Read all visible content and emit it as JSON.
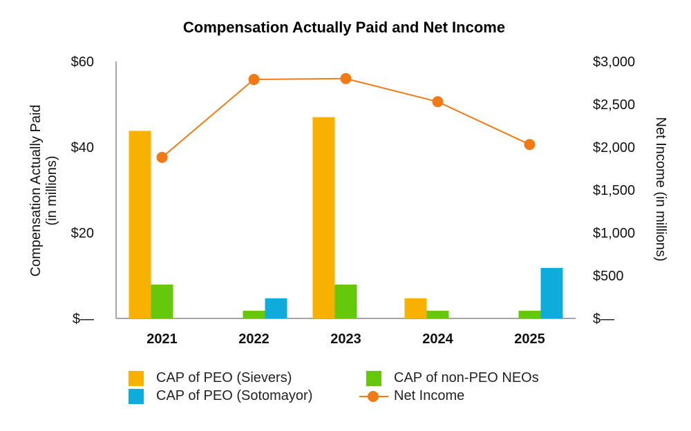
{
  "chart_data": {
    "type": "bar",
    "title": "Compensation Actually Paid and Net Income",
    "categories": [
      "2021",
      "2022",
      "2023",
      "2024",
      "2025"
    ],
    "ylabel_left": [
      "Compensation Actually Paid",
      "(in millions)"
    ],
    "ylabel_right": "Net Income (in millions)",
    "ylim_left": [
      0,
      60
    ],
    "ylim_right": [
      0,
      3000
    ],
    "left_ticks": [
      {
        "value": 0,
        "label": "$—"
      },
      {
        "value": 20,
        "label": "$20"
      },
      {
        "value": 40,
        "label": "$40"
      },
      {
        "value": 60,
        "label": "$60"
      }
    ],
    "right_ticks": [
      {
        "value": 0,
        "label": "$—"
      },
      {
        "value": 500,
        "label": "$500"
      },
      {
        "value": 1000,
        "label": "$1,000"
      },
      {
        "value": 1500,
        "label": "$1,500"
      },
      {
        "value": 2000,
        "label": "$2,000"
      },
      {
        "value": 2500,
        "label": "$2,500"
      },
      {
        "value": 3000,
        "label": "$3,000"
      }
    ],
    "series": [
      {
        "name": "CAP of PEO (Sievers)",
        "type": "bar",
        "axis": "left",
        "color": "#F9B100",
        "values": [
          43.8,
          null,
          47.0,
          4.7,
          null
        ]
      },
      {
        "name": "CAP of non-PEO NEOs",
        "type": "bar",
        "axis": "left",
        "color": "#66C80A",
        "values": [
          7.9,
          1.8,
          7.9,
          1.8,
          1.8
        ]
      },
      {
        "name": "CAP of PEO (Sotomayor)",
        "type": "bar",
        "axis": "left",
        "color": "#0EACDB",
        "values": [
          null,
          4.7,
          null,
          null,
          11.8
        ]
      },
      {
        "name": "Net Income",
        "type": "line",
        "axis": "right",
        "color": "#F07B16",
        "values": [
          1880,
          2790,
          2800,
          2530,
          2030
        ]
      }
    ]
  },
  "legend": {
    "items": [
      {
        "label": "CAP of PEO (Sievers)",
        "color": "#F9B100"
      },
      {
        "label": "CAP of non-PEO NEOs",
        "color": "#66C80A"
      },
      {
        "label": "CAP of PEO (Sotomayor)",
        "color": "#0EACDB"
      },
      {
        "label": "Net Income",
        "color": "#F07B16"
      }
    ]
  }
}
